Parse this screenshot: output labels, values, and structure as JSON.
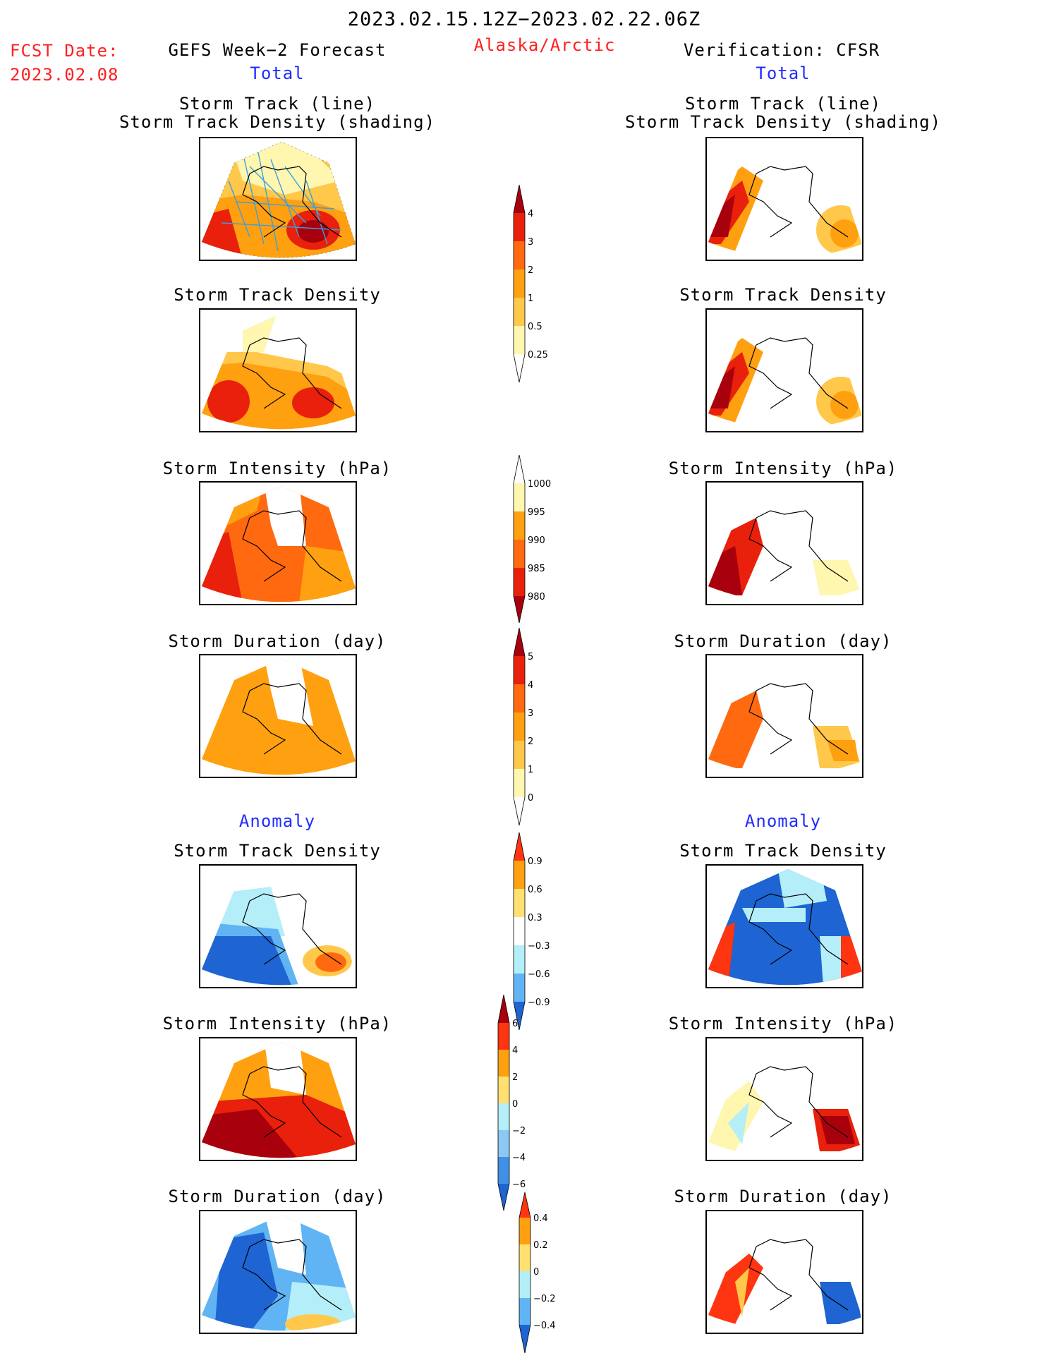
{
  "header": {
    "period": "2023.02.15.12Z−2023.02.22.06Z",
    "fcst_label": "FCST Date:",
    "fcst_date": "2023.02.08",
    "left_title": "GEFS Week−2 Forecast",
    "region": "Alaska/Arctic",
    "right_title": "Verification: CFSR",
    "left_total": "Total",
    "right_total": "Total",
    "left_anomaly": "Anomaly",
    "right_anomaly": "Anomaly"
  },
  "panel_titles": {
    "track_line": "Storm Track (line)",
    "track_shading": "Storm Track Density (shading)",
    "density": "Storm Track Density",
    "intensity": "Storm Intensity (hPa)",
    "duration": "Storm Duration (day)"
  },
  "colors": {
    "pale_yellow": "#fff6b0",
    "light_orange": "#ffc84a",
    "orange": "#ffa010",
    "dark_orange": "#ff6a10",
    "red": "#e8200c",
    "dark_red": "#a8000c",
    "light_blue": "#b4eef8",
    "mid_blue": "#60b4f4",
    "blue": "#1e64d2",
    "track_line": "#3aa0e0"
  },
  "colorbars": {
    "density_total": {
      "labels": [
        "4",
        "3",
        "2",
        "1",
        "0.5",
        "0.25"
      ]
    },
    "intensity_total": {
      "labels": [
        "1000",
        "995",
        "990",
        "985",
        "980"
      ]
    },
    "duration_total": {
      "labels": [
        "5",
        "4",
        "3",
        "2",
        "1",
        "0"
      ]
    },
    "density_anom": {
      "labels": [
        "0.9",
        "0.6",
        "0.3",
        "−0.3",
        "−0.6",
        "−0.9"
      ]
    },
    "intensity_anom": {
      "labels": [
        "6",
        "4",
        "2",
        "0",
        "−2",
        "−4",
        "−6"
      ]
    },
    "duration_anom": {
      "labels": [
        "0.4",
        "0.2",
        "0",
        "−0.2",
        "−0.4"
      ]
    }
  }
}
